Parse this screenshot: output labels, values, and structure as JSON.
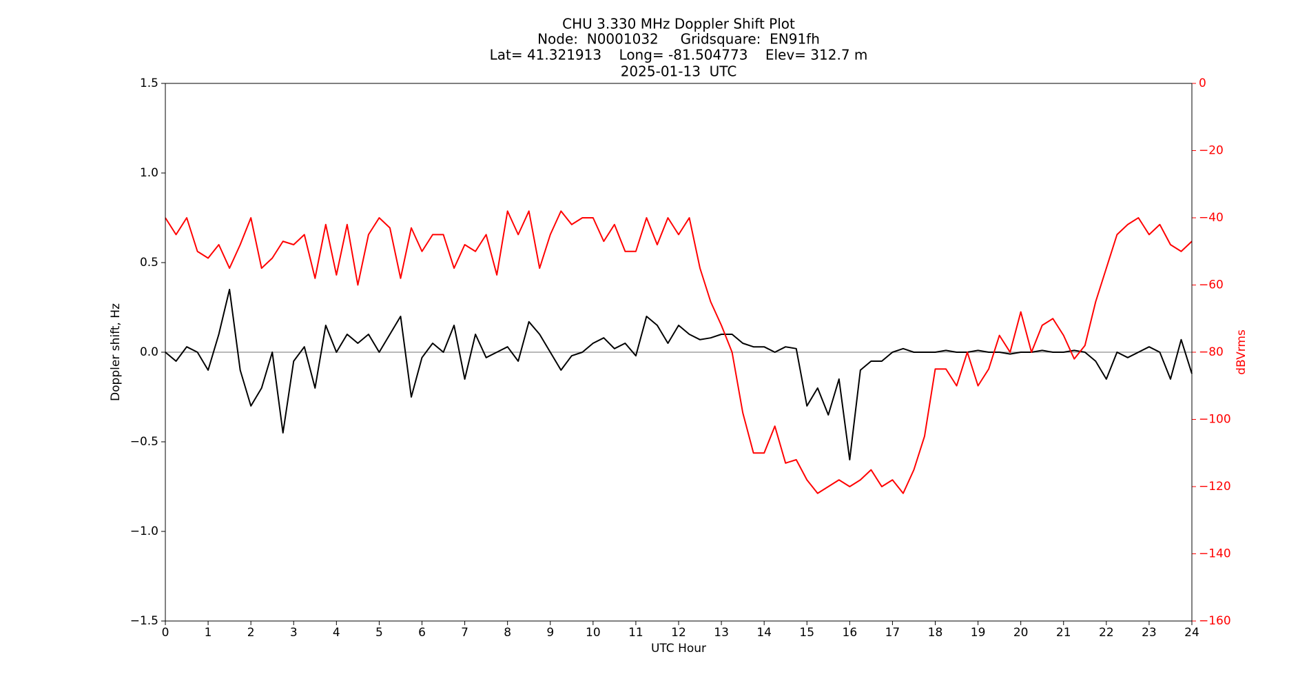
{
  "chart_data": {
    "type": "line",
    "title": "CHU 3.330 MHz Doppler Shift Plot",
    "subtitle_lines": [
      "Node:  N0001032     Gridsquare:  EN91fh",
      "Lat= 41.321913    Long= -81.504773    Elev= 312.7 m",
      "2025-01-13  UTC"
    ],
    "x_label": "UTC Hour",
    "y_label": "Doppler shift, Hz",
    "y2_label": "dBVrms",
    "y2_color": "#ff0000",
    "xlim": [
      0,
      24
    ],
    "xticks": [
      0,
      1,
      2,
      3,
      4,
      5,
      6,
      7,
      8,
      9,
      10,
      11,
      12,
      13,
      14,
      15,
      16,
      17,
      18,
      19,
      20,
      21,
      22,
      23,
      24
    ],
    "ylim": [
      -1.5,
      1.5
    ],
    "yticks": [
      {
        "value": -1.5,
        "label": "−1.5"
      },
      {
        "value": -1.0,
        "label": "−1.0"
      },
      {
        "value": -0.5,
        "label": "−0.5"
      },
      {
        "value": 0,
        "label": "0.0"
      },
      0.5,
      {
        "value": 1.0,
        "label": "1.0"
      },
      1.5
    ],
    "y2lim": [
      -160,
      0
    ],
    "y2ticks": [
      {
        "value": -160,
        "label": "−160"
      },
      {
        "value": -140,
        "label": "−140"
      },
      {
        "value": -120,
        "label": "−120"
      },
      {
        "value": -100,
        "label": "−100"
      },
      {
        "value": -80,
        "label": "−80"
      },
      {
        "value": -60,
        "label": "−60"
      },
      {
        "value": -40,
        "label": "−40"
      },
      {
        "value": -20,
        "label": "−20"
      },
      0
    ],
    "reference_line": 0,
    "reference_color": "#a0a0a0",
    "grid": false,
    "x": [
      0,
      0.25,
      0.5,
      0.75,
      1,
      1.25,
      1.5,
      1.75,
      2,
      2.25,
      2.5,
      2.75,
      3,
      3.25,
      3.5,
      3.75,
      4,
      4.25,
      4.5,
      4.75,
      5,
      5.25,
      5.5,
      5.75,
      6,
      6.25,
      6.5,
      6.75,
      7,
      7.25,
      7.5,
      7.75,
      8,
      8.25,
      8.5,
      8.75,
      9,
      9.25,
      9.5,
      9.75,
      10,
      10.25,
      10.5,
      10.75,
      11,
      11.25,
      11.5,
      11.75,
      12,
      12.25,
      12.5,
      12.75,
      13,
      13.25,
      13.5,
      13.75,
      14,
      14.25,
      14.5,
      14.75,
      15,
      15.25,
      15.5,
      15.75,
      16,
      16.25,
      16.5,
      16.75,
      17,
      17.25,
      17.5,
      17.75,
      18,
      18.25,
      18.5,
      18.75,
      19,
      19.25,
      19.5,
      19.75,
      20,
      20.25,
      20.5,
      20.75,
      21,
      21.25,
      21.5,
      21.75,
      22,
      22.25,
      22.5,
      22.75,
      23,
      23.25,
      23.5,
      23.75,
      24
    ],
    "series": [
      {
        "name": "Doppler shift",
        "color": "#000000",
        "axis": "y",
        "values": [
          0,
          -0.05,
          0.03,
          0,
          -0.1,
          0.1,
          0.35,
          -0.1,
          -0.3,
          -0.2,
          0,
          -0.45,
          -0.05,
          0.03,
          -0.2,
          0.15,
          0,
          0.1,
          0.05,
          0.1,
          0,
          0.1,
          0.2,
          -0.25,
          -0.03,
          0.05,
          0,
          0.15,
          -0.15,
          0.1,
          -0.03,
          0,
          0.03,
          -0.05,
          0.17,
          0.1,
          0,
          -0.1,
          -0.02,
          0,
          0.05,
          0.08,
          0.02,
          0.05,
          -0.02,
          0.2,
          0.15,
          0.05,
          0.15,
          0.1,
          0.07,
          0.08,
          0.1,
          0.1,
          0.05,
          0.03,
          0.03,
          0,
          0.03,
          0.02,
          -0.3,
          -0.2,
          -0.35,
          -0.15,
          -0.6,
          -0.1,
          -0.05,
          -0.05,
          0,
          0.02,
          0,
          0,
          0,
          0.01,
          0,
          0,
          0.01,
          0,
          0,
          -0.01,
          0,
          0,
          0.01,
          0,
          0,
          0.01,
          0,
          -0.05,
          -0.15,
          0,
          -0.03,
          0,
          0.03,
          0,
          -0.15,
          0.07,
          -0.12
        ]
      },
      {
        "name": "dBVrms",
        "color": "#ff0000",
        "axis": "y2",
        "values": [
          -40,
          -45,
          -40,
          -50,
          -52,
          -48,
          -55,
          -48,
          -40,
          -55,
          -52,
          -47,
          -48,
          -45,
          -58,
          -42,
          -57,
          -42,
          -60,
          -45,
          -40,
          -43,
          -58,
          -43,
          -50,
          -45,
          -45,
          -55,
          -48,
          -50,
          -45,
          -57,
          -38,
          -45,
          -38,
          -55,
          -45,
          -38,
          -42,
          -40,
          -40,
          -47,
          -42,
          -50,
          -50,
          -40,
          -48,
          -40,
          -45,
          -40,
          -55,
          -65,
          -72,
          -80,
          -98,
          -110,
          -110,
          -102,
          -113,
          -112,
          -118,
          -122,
          -120,
          -118,
          -120,
          -118,
          -115,
          -120,
          -118,
          -122,
          -115,
          -105,
          -85,
          -85,
          -90,
          -80,
          -90,
          -85,
          -75,
          -80,
          -68,
          -80,
          -72,
          -70,
          -75,
          -82,
          -78,
          -65,
          -55,
          -45,
          -42,
          -40,
          -45,
          -42,
          -48,
          -50,
          -47
        ]
      }
    ]
  }
}
